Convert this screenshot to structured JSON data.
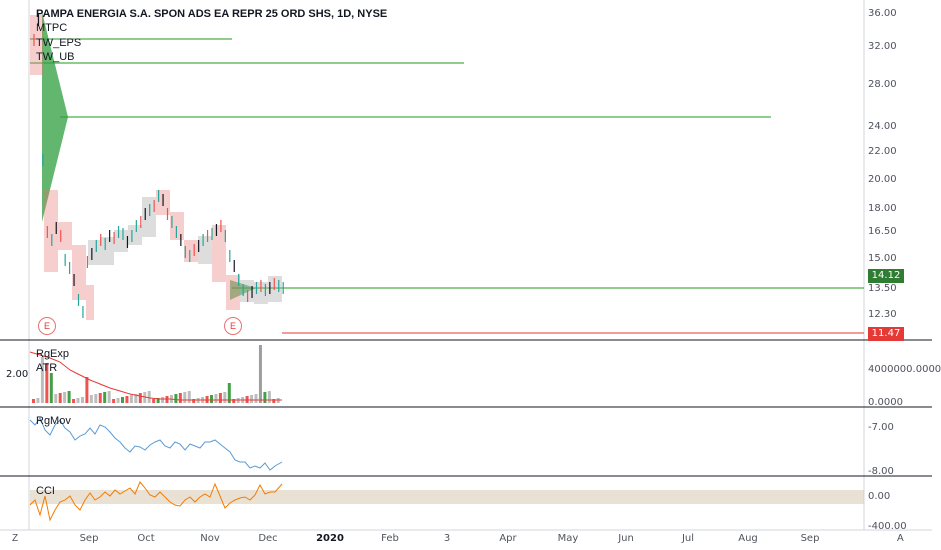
{
  "title": "PAMPA ENERGIA S.A. SPON ADS EA REPR 25 ORD SHS, 1D, NYSE",
  "main_legend": [
    "MTPC",
    "TW_EPS",
    "TW_UB"
  ],
  "price_axis": [
    "36.00",
    "32.00",
    "28.00",
    "24.00",
    "22.00",
    "20.00",
    "18.00",
    "16.50",
    "15.00",
    "13.50",
    "12.30"
  ],
  "last_price": "14.12",
  "low_price": "11.47",
  "colors": {
    "up": "#26a69a",
    "down": "#ef5350",
    "badge_green": "#2e7d32",
    "badge_red": "#e53935",
    "line_green": "#1b9e1b"
  },
  "earnings_marker": "E",
  "volume_pane": {
    "legend": [
      "RgExp",
      "ATR"
    ],
    "left_label": "2.00",
    "axis": [
      "4000000.0000",
      "0.0000"
    ]
  },
  "rgmov_pane": {
    "legend": "RgMov",
    "axis": [
      "-7.00",
      "-8.00"
    ]
  },
  "cci_pane": {
    "legend": "CCI",
    "axis": [
      "0.00",
      "-400.00"
    ]
  },
  "time_axis": [
    {
      "label": "Sep",
      "bold": false
    },
    {
      "label": "Oct",
      "bold": false
    },
    {
      "label": "Nov",
      "bold": false
    },
    {
      "label": "Dec",
      "bold": false
    },
    {
      "label": "2020",
      "bold": true
    },
    {
      "label": "Feb",
      "bold": false
    },
    {
      "label": "3",
      "bold": false
    },
    {
      "label": "Apr",
      "bold": false
    },
    {
      "label": "May",
      "bold": false
    },
    {
      "label": "Jun",
      "bold": false
    },
    {
      "label": "Jul",
      "bold": false
    },
    {
      "label": "Aug",
      "bold": false
    },
    {
      "label": "Sep",
      "bold": false
    }
  ],
  "corner_left": "Z",
  "corner_right": "A"
}
